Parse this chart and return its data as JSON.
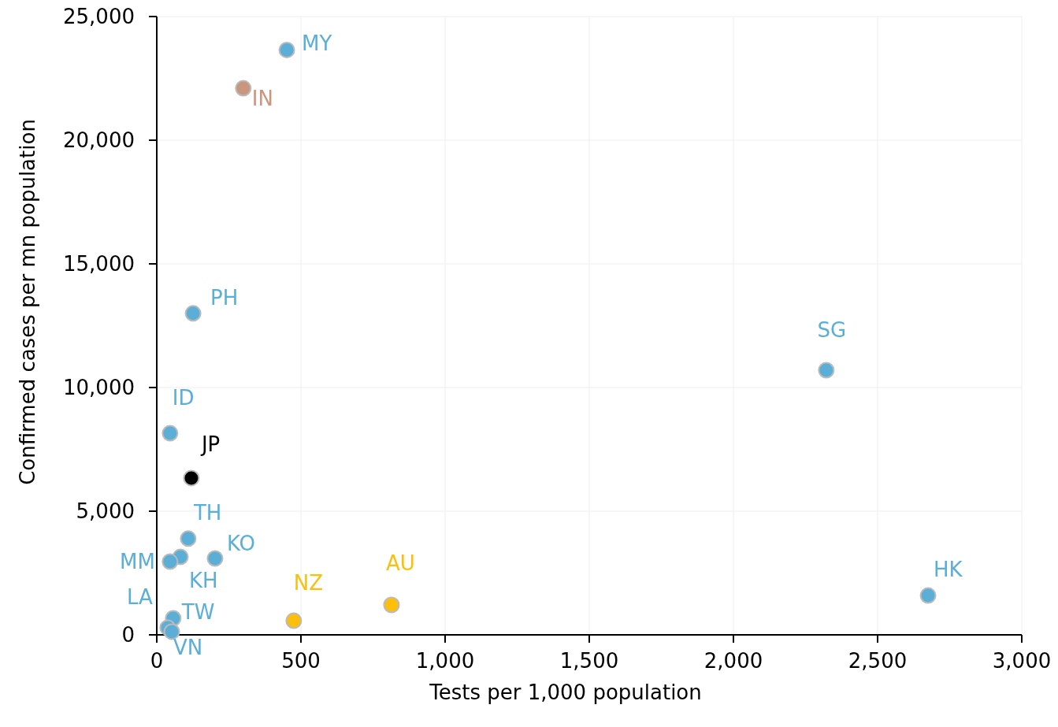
{
  "chart_data": {
    "type": "scatter",
    "xlabel": "Tests per 1,000 population",
    "ylabel": "Confirmed cases per mn population",
    "x": [
      451,
      300,
      126,
      2322,
      46,
      120,
      109,
      202,
      82,
      46,
      2675,
      814,
      475,
      57,
      38,
      52
    ],
    "values": [
      23650,
      22100,
      13000,
      10700,
      8150,
      6340,
      3890,
      3090,
      3150,
      2960,
      1590,
      1210,
      570,
      670,
      290,
      130
    ],
    "colors": [
      "#5bafd6",
      "#c9967e",
      "#5bafd6",
      "#5bafd6",
      "#5bafd6",
      "#000000",
      "#5bafd6",
      "#5bafd6",
      "#5bafd6",
      "#5bafd6",
      "#5bafd6",
      "#fbbf0c",
      "#fbbf0c",
      "#5bafd6",
      "#5bafd6",
      "#5bafd6"
    ],
    "value_labels": [
      "MY",
      "IN",
      "PH",
      "SG",
      "ID",
      "JP",
      "TH",
      "KO",
      "KH",
      "MM",
      "HK",
      "AU",
      "NZ",
      "TW",
      "LA",
      "VN"
    ],
    "xlim": [
      0,
      3000
    ],
    "xticks": [
      0,
      {
        "value": 500,
        "label": "500"
      },
      {
        "value": 1000,
        "label": "1,000"
      },
      {
        "value": 1500,
        "label": "1,500"
      },
      {
        "value": 2000,
        "label": "2,000"
      },
      {
        "value": 2500,
        "label": "2,500"
      },
      {
        "value": 3000,
        "label": "3,000"
      }
    ],
    "ylim": [
      0,
      25000
    ],
    "yticks": [
      0,
      {
        "value": 5000,
        "label": "5,000"
      },
      {
        "value": 10000,
        "label": "10,000"
      },
      {
        "value": 15000,
        "label": "15,000"
      },
      {
        "value": 20000,
        "label": "20,000"
      },
      {
        "value": 25000,
        "label": "25,000"
      }
    ],
    "grid": true,
    "marker": "circle"
  }
}
